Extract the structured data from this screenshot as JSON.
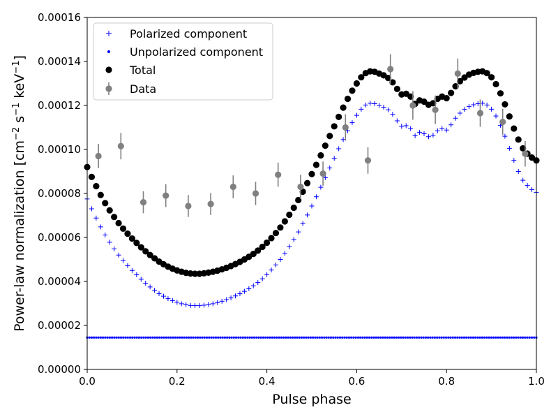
{
  "chart_data": {
    "type": "scatter",
    "title": "",
    "xlabel": "Pulse phase",
    "ylabel": {
      "prefix": "Power-law normalization [cm",
      "exp1": "−2",
      "mid1": " s",
      "exp2": "−1",
      "mid2": " keV",
      "exp3": "−1",
      "suffix": "]"
    },
    "xlim": [
      0.0,
      1.0
    ],
    "ylim": [
      0.0,
      0.00016
    ],
    "xticks": [
      {
        "value": 0.0,
        "label": "0.0"
      },
      {
        "value": 0.2,
        "label": "0.2"
      },
      {
        "value": 0.4,
        "label": "0.4"
      },
      {
        "value": 0.6,
        "label": "0.6"
      },
      {
        "value": 0.8,
        "label": "0.8"
      },
      {
        "value": 1.0,
        "label": "1.0"
      }
    ],
    "yticks": [
      {
        "value": 0.0,
        "label": "0.00000"
      },
      {
        "value": 2e-05,
        "label": "0.00002"
      },
      {
        "value": 4e-05,
        "label": "0.00004"
      },
      {
        "value": 6e-05,
        "label": "0.00006"
      },
      {
        "value": 8e-05,
        "label": "0.00008"
      },
      {
        "value": 0.0001,
        "label": "0.00010"
      },
      {
        "value": 0.00012,
        "label": "0.00012"
      },
      {
        "value": 0.00014,
        "label": "0.00014"
      },
      {
        "value": 0.00016,
        "label": "0.00016"
      }
    ],
    "grid": false,
    "legend_position": "top-left",
    "legend": [
      {
        "label": "Polarized component",
        "marker": "plus",
        "color": "#0000ff"
      },
      {
        "label": "Unpolarized component",
        "marker": "dot",
        "color": "#0000ff"
      },
      {
        "label": "Total",
        "marker": "circle",
        "color": "#000000"
      },
      {
        "label": "Data",
        "marker": "errorbar",
        "color": "#808080"
      }
    ],
    "series": [
      {
        "name": "Polarized component",
        "style": "plus",
        "color": "#0000ff",
        "x": [
          0.0,
          0.01,
          0.02,
          0.03,
          0.04,
          0.05,
          0.06,
          0.07,
          0.08,
          0.09,
          0.1,
          0.11,
          0.12,
          0.13,
          0.14,
          0.15,
          0.16,
          0.17,
          0.18,
          0.19,
          0.2,
          0.21,
          0.22,
          0.23,
          0.24,
          0.25,
          0.26,
          0.27,
          0.28,
          0.29,
          0.3,
          0.31,
          0.32,
          0.33,
          0.34,
          0.35,
          0.36,
          0.37,
          0.38,
          0.39,
          0.4,
          0.41,
          0.42,
          0.43,
          0.44,
          0.45,
          0.46,
          0.47,
          0.48,
          0.49,
          0.5,
          0.51,
          0.52,
          0.53,
          0.54,
          0.55,
          0.56,
          0.57,
          0.58,
          0.59,
          0.6,
          0.61,
          0.62,
          0.63,
          0.64,
          0.65,
          0.66,
          0.67,
          0.68,
          0.69,
          0.7,
          0.71,
          0.72,
          0.73,
          0.74,
          0.75,
          0.76,
          0.77,
          0.78,
          0.79,
          0.8,
          0.81,
          0.82,
          0.83,
          0.84,
          0.85,
          0.86,
          0.87,
          0.88,
          0.89,
          0.9,
          0.91,
          0.92,
          0.93,
          0.94,
          0.95,
          0.96,
          0.97,
          0.98,
          0.99,
          1.0
        ],
        "y": [
          7.75e-05,
          7.3e-05,
          6.88e-05,
          6.48e-05,
          6.11e-05,
          5.78e-05,
          5.48e-05,
          5.2e-05,
          4.95e-05,
          4.72e-05,
          4.5e-05,
          4.3e-05,
          4.1e-05,
          3.92e-05,
          3.75e-05,
          3.6e-05,
          3.45e-05,
          3.33e-05,
          3.22e-05,
          3.13e-05,
          3.05e-05,
          2.99e-05,
          2.94e-05,
          2.91e-05,
          2.9e-05,
          2.9e-05,
          2.92e-05,
          2.95e-05,
          2.99e-05,
          3.04e-05,
          3.1e-05,
          3.17e-05,
          3.25e-05,
          3.34e-05,
          3.44e-05,
          3.55e-05,
          3.67e-05,
          3.8e-05,
          3.95e-05,
          4.12e-05,
          4.31e-05,
          4.52e-05,
          4.75e-05,
          5e-05,
          5.28e-05,
          5.58e-05,
          5.9e-05,
          6.25e-05,
          6.63e-05,
          7.02e-05,
          7.43e-05,
          7.85e-05,
          8.28e-05,
          8.72e-05,
          9.16e-05,
          9.6e-05,
          0.0001003,
          0.0001045,
          0.0001085,
          0.0001122,
          0.0001155,
          0.0001183,
          0.0001202,
          0.000121,
          0.0001208,
          0.00012,
          0.0001192,
          0.000118,
          0.000116,
          0.000113,
          0.0001105,
          0.0001108,
          0.0001095,
          0.0001062,
          0.0001078,
          0.0001072,
          0.0001058,
          0.0001065,
          0.0001085,
          0.0001095,
          0.0001088,
          0.0001112,
          0.0001142,
          0.0001165,
          0.0001182,
          0.0001195,
          0.0001203,
          0.0001208,
          0.000121,
          0.0001202,
          0.0001183,
          0.0001152,
          0.000111,
          0.000106,
          0.0001005,
          9.5e-05,
          9e-05,
          8.6e-05,
          8.36e-05,
          8.18e-05,
          8.05e-05
        ]
      },
      {
        "name": "Unpolarized component",
        "style": "dot",
        "color": "#0000ff",
        "x": [
          0.0,
          1.0
        ],
        "y": [
          1.45e-05,
          1.45e-05
        ],
        "n_points": 200
      },
      {
        "name": "Total",
        "style": "circle",
        "color": "#000000",
        "x": [
          0.0,
          0.01,
          0.02,
          0.03,
          0.04,
          0.05,
          0.06,
          0.07,
          0.08,
          0.09,
          0.1,
          0.11,
          0.12,
          0.13,
          0.14,
          0.15,
          0.16,
          0.17,
          0.18,
          0.19,
          0.2,
          0.21,
          0.22,
          0.23,
          0.24,
          0.25,
          0.26,
          0.27,
          0.28,
          0.29,
          0.3,
          0.31,
          0.32,
          0.33,
          0.34,
          0.35,
          0.36,
          0.37,
          0.38,
          0.39,
          0.4,
          0.41,
          0.42,
          0.43,
          0.44,
          0.45,
          0.46,
          0.47,
          0.48,
          0.49,
          0.5,
          0.51,
          0.52,
          0.53,
          0.54,
          0.55,
          0.56,
          0.57,
          0.58,
          0.59,
          0.6,
          0.61,
          0.62,
          0.63,
          0.64,
          0.65,
          0.66,
          0.67,
          0.68,
          0.69,
          0.7,
          0.71,
          0.72,
          0.73,
          0.74,
          0.75,
          0.76,
          0.77,
          0.78,
          0.79,
          0.8,
          0.81,
          0.82,
          0.83,
          0.84,
          0.85,
          0.86,
          0.87,
          0.88,
          0.89,
          0.9,
          0.91,
          0.92,
          0.93,
          0.94,
          0.95,
          0.96,
          0.97,
          0.98,
          0.99,
          1.0
        ],
        "y": [
          9.2e-05,
          8.75e-05,
          8.33e-05,
          7.93e-05,
          7.56e-05,
          7.23e-05,
          6.93e-05,
          6.65e-05,
          6.4e-05,
          6.17e-05,
          5.95e-05,
          5.75e-05,
          5.55e-05,
          5.37e-05,
          5.2e-05,
          5.05e-05,
          4.9e-05,
          4.78e-05,
          4.67e-05,
          4.58e-05,
          4.5e-05,
          4.44e-05,
          4.39e-05,
          4.36e-05,
          4.35e-05,
          4.35e-05,
          4.37e-05,
          4.4e-05,
          4.44e-05,
          4.49e-05,
          4.55e-05,
          4.62e-05,
          4.7e-05,
          4.79e-05,
          4.89e-05,
          5e-05,
          5.12e-05,
          5.25e-05,
          5.4e-05,
          5.57e-05,
          5.76e-05,
          5.97e-05,
          6.2e-05,
          6.45e-05,
          6.73e-05,
          7.03e-05,
          7.35e-05,
          7.7e-05,
          8.08e-05,
          8.47e-05,
          8.88e-05,
          9.3e-05,
          9.73e-05,
          0.0001017,
          0.0001061,
          0.0001105,
          0.0001148,
          0.000119,
          0.000123,
          0.0001267,
          0.00013,
          0.0001328,
          0.0001347,
          0.0001355,
          0.0001353,
          0.0001345,
          0.0001337,
          0.0001325,
          0.0001305,
          0.0001275,
          0.000125,
          0.0001253,
          0.000124,
          0.0001207,
          0.0001223,
          0.0001217,
          0.0001203,
          0.000121,
          0.000123,
          0.000124,
          0.0001233,
          0.0001257,
          0.0001287,
          0.000131,
          0.0001327,
          0.000134,
          0.0001348,
          0.0001353,
          0.0001355,
          0.0001347,
          0.0001328,
          0.0001297,
          0.0001255,
          0.0001205,
          0.000115,
          0.0001095,
          0.0001045,
          0.0001005,
          9.81e-05,
          9.63e-05,
          9.5e-05
        ]
      },
      {
        "name": "Data",
        "style": "errorbar",
        "color": "#808080",
        "x": [
          0.025,
          0.075,
          0.125,
          0.175,
          0.225,
          0.275,
          0.325,
          0.375,
          0.425,
          0.475,
          0.525,
          0.575,
          0.625,
          0.675,
          0.725,
          0.775,
          0.825,
          0.875,
          0.925,
          0.975
        ],
        "y": [
          9.7e-05,
          0.0001015,
          7.6e-05,
          7.9e-05,
          7.43e-05,
          7.52e-05,
          8.3e-05,
          8e-05,
          8.85e-05,
          8.3e-05,
          8.9e-05,
          0.00011,
          9.5e-05,
          0.0001365,
          0.00012,
          0.000118,
          0.0001345,
          0.0001165,
          0.0001125,
          9.8e-05
        ],
        "yerr": [
          5.5e-06,
          6e-06,
          5e-06,
          5.2e-06,
          5e-06,
          5e-06,
          5.2e-06,
          5.3e-06,
          5.5e-06,
          5.5e-06,
          5.5e-06,
          6e-06,
          6e-06,
          6.8e-06,
          6.5e-06,
          6.5e-06,
          6.8e-06,
          6.2e-06,
          6e-06,
          5.8e-06
        ]
      }
    ]
  }
}
